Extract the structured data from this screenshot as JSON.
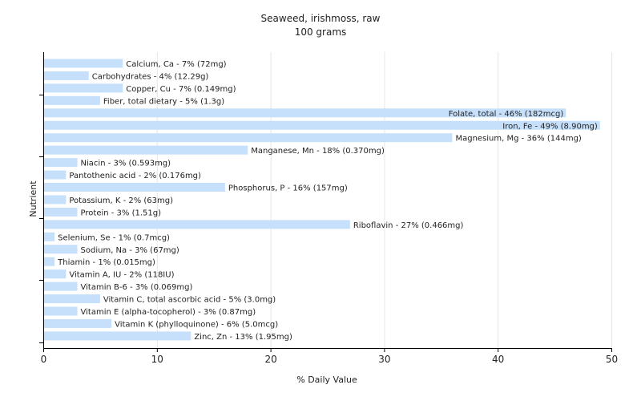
{
  "chart_data": {
    "type": "bar",
    "orientation": "horizontal",
    "title": "Seaweed, irishmoss, raw",
    "subtitle": "100 grams",
    "xlabel": "% Daily Value",
    "ylabel": "Nutrient",
    "xlim": [
      0,
      50
    ],
    "xticks": [
      0,
      10,
      20,
      30,
      40,
      50
    ],
    "grid": true,
    "bar_color": "#c6e0fb",
    "categories": [
      "Calcium, Ca",
      "Carbohydrates",
      "Copper, Cu",
      "Fiber, total dietary",
      "Folate, total",
      "Iron, Fe",
      "Magnesium, Mg",
      "Manganese, Mn",
      "Niacin",
      "Pantothenic acid",
      "Phosphorus, P",
      "Potassium, K",
      "Protein",
      "Riboflavin",
      "Selenium, Se",
      "Sodium, Na",
      "Thiamin",
      "Vitamin A, IU",
      "Vitamin B-6",
      "Vitamin C, total ascorbic acid",
      "Vitamin E (alpha-tocopherol)",
      "Vitamin K (phylloquinone)",
      "Zinc, Zn"
    ],
    "values": [
      7,
      4,
      7,
      5,
      46,
      49,
      36,
      18,
      3,
      2,
      16,
      2,
      3,
      27,
      1,
      3,
      1,
      2,
      3,
      5,
      3,
      6,
      13
    ],
    "labels": [
      "Calcium, Ca - 7% (72mg)",
      "Carbohydrates - 4% (12.29g)",
      "Copper, Cu - 7% (0.149mg)",
      "Fiber, total dietary - 5% (1.3g)",
      "Folate, total - 46% (182mcg)",
      "Iron, Fe - 49% (8.90mg)",
      "Magnesium, Mg - 36% (144mg)",
      "Manganese, Mn - 18% (0.370mg)",
      "Niacin - 3% (0.593mg)",
      "Pantothenic acid - 2% (0.176mg)",
      "Phosphorus, P - 16% (157mg)",
      "Potassium, K - 2% (63mg)",
      "Protein - 3% (1.51g)",
      "Riboflavin - 27% (0.466mg)",
      "Selenium, Se - 1% (0.7mcg)",
      "Sodium, Na - 3% (67mg)",
      "Thiamin - 1% (0.015mg)",
      "Vitamin A, IU - 2% (118IU)",
      "Vitamin B-6 - 3% (0.069mg)",
      "Vitamin C, total ascorbic acid - 5% (3.0mg)",
      "Vitamin E (alpha-tocopherol) - 3% (0.87mg)",
      "Vitamin K (phylloquinone) - 6% (5.0mcg)",
      "Zinc, Zn - 13% (1.95mg)"
    ]
  }
}
